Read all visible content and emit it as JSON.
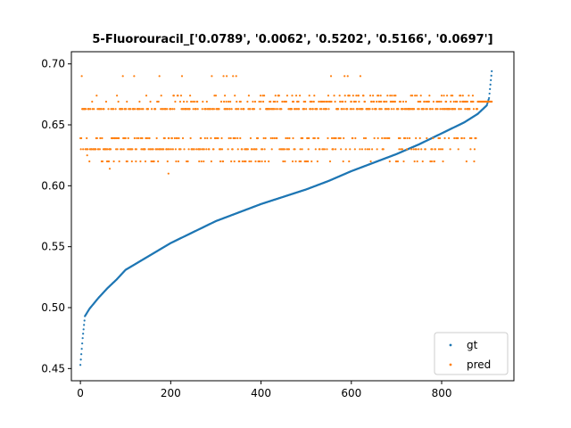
{
  "chart_data": {
    "type": "scatter",
    "title": "5-Fluorouracil_['0.0789', '0.0062', '0.5202', '0.5166', '0.0697']",
    "xlabel": "",
    "ylabel": "",
    "xlim": [
      -20,
      960
    ],
    "ylim": [
      0.44,
      0.71
    ],
    "x_ticks": [
      0,
      200,
      400,
      600,
      800
    ],
    "y_ticks": [
      0.45,
      0.5,
      0.55,
      0.6,
      0.65,
      0.7
    ],
    "n_points": 912,
    "grid": false,
    "legend": {
      "placement": "lower-right",
      "entries": [
        "gt",
        "pred"
      ]
    },
    "series": [
      {
        "name": "gt",
        "color": "#1f77b4",
        "curve_x": [
          0,
          5,
          10,
          20,
          40,
          60,
          80,
          100,
          150,
          200,
          250,
          300,
          350,
          400,
          450,
          500,
          550,
          600,
          650,
          700,
          750,
          800,
          850,
          880,
          900,
          905,
          911
        ],
        "curve_y": [
          0.453,
          0.475,
          0.493,
          0.499,
          0.508,
          0.516,
          0.523,
          0.531,
          0.542,
          0.553,
          0.562,
          0.571,
          0.578,
          0.585,
          0.591,
          0.597,
          0.604,
          0.612,
          0.619,
          0.626,
          0.634,
          0.643,
          0.652,
          0.659,
          0.666,
          0.672,
          0.694
        ]
      },
      {
        "name": "pred",
        "color": "#ff7f0e",
        "levels": [
          0.62,
          0.63,
          0.639,
          0.663,
          0.669,
          0.674,
          0.69
        ],
        "level_weights_early": [
          0.15,
          0.33,
          0.18,
          0.25,
          0.04,
          0.03,
          0.02
        ],
        "level_weights_late": [
          0.02,
          0.08,
          0.1,
          0.38,
          0.28,
          0.12,
          0.02
        ],
        "outliers": [
          [
            65,
            0.614
          ],
          [
            195,
            0.61
          ],
          [
            15,
            0.625
          ],
          [
            470,
            0.62
          ]
        ]
      }
    ]
  }
}
